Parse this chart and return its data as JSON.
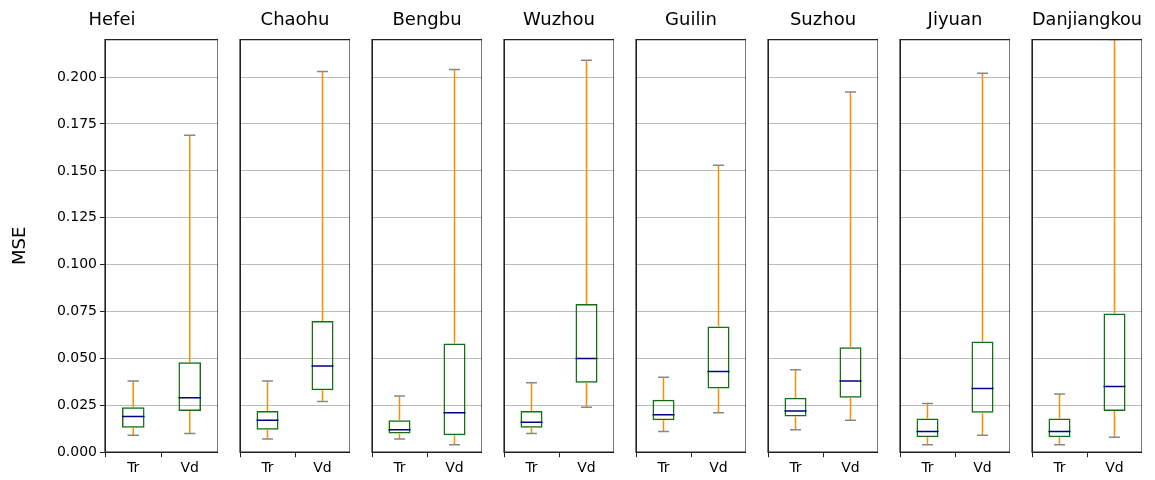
{
  "chart_data": [
    {
      "type": "box",
      "title": "Hefei",
      "ylabel": "MSE",
      "categories": [
        "Tr",
        "Vd"
      ],
      "grid": "y",
      "ylim": [
        0,
        0.22
      ],
      "yticks": [
        {
          "value": 0,
          "label": "0.000"
        },
        {
          "value": 0.025,
          "label": "0.025"
        },
        {
          "value": 0.05,
          "label": "0.050"
        },
        {
          "value": 0.075,
          "label": "0.075"
        },
        {
          "value": 0.1,
          "label": "0.100"
        },
        {
          "value": 0.125,
          "label": "0.125"
        },
        {
          "value": 0.15,
          "label": "0.150"
        },
        {
          "value": 0.175,
          "label": "0.175"
        },
        {
          "value": 0.2,
          "label": "0.200"
        }
      ],
      "boxes": [
        {
          "low": 0.009,
          "q1": 0.013,
          "median": 0.019,
          "q3": 0.024,
          "high": 0.038
        },
        {
          "low": 0.01,
          "q1": 0.022,
          "median": 0.029,
          "q3": 0.048,
          "high": 0.169
        }
      ]
    },
    {
      "type": "box",
      "title": "Chaohu",
      "categories": [
        "Tr",
        "Vd"
      ],
      "grid": "y",
      "tick_labels": "x",
      "ylim": [
        0,
        0.22
      ],
      "boxes": [
        {
          "low": 0.007,
          "q1": 0.012,
          "median": 0.017,
          "q3": 0.022,
          "high": 0.038
        },
        {
          "low": 0.027,
          "q1": 0.033,
          "median": 0.046,
          "q3": 0.07,
          "high": 0.203
        }
      ]
    },
    {
      "type": "box",
      "title": "Bengbu",
      "categories": [
        "Tr",
        "Vd"
      ],
      "grid": "y",
      "tick_labels": "x",
      "ylim": [
        0,
        0.22
      ],
      "boxes": [
        {
          "low": 0.007,
          "q1": 0.01,
          "median": 0.012,
          "q3": 0.017,
          "high": 0.03
        },
        {
          "low": 0.004,
          "q1": 0.009,
          "median": 0.021,
          "q3": 0.058,
          "high": 0.204
        }
      ]
    },
    {
      "type": "box",
      "title": "Wuzhou",
      "categories": [
        "Tr",
        "Vd"
      ],
      "grid": "y",
      "tick_labels": "x",
      "ylim": [
        0,
        0.22
      ],
      "boxes": [
        {
          "low": 0.01,
          "q1": 0.013,
          "median": 0.016,
          "q3": 0.022,
          "high": 0.037
        },
        {
          "low": 0.024,
          "q1": 0.037,
          "median": 0.05,
          "q3": 0.079,
          "high": 0.209
        }
      ]
    },
    {
      "type": "box",
      "title": "Guilin",
      "categories": [
        "Tr",
        "Vd"
      ],
      "grid": "y",
      "tick_labels": "x",
      "ylim": [
        0,
        0.22
      ],
      "boxes": [
        {
          "low": 0.011,
          "q1": 0.017,
          "median": 0.02,
          "q3": 0.028,
          "high": 0.04
        },
        {
          "low": 0.021,
          "q1": 0.034,
          "median": 0.043,
          "q3": 0.067,
          "high": 0.153
        }
      ]
    },
    {
      "type": "box",
      "title": "Suzhou",
      "categories": [
        "Tr",
        "Vd"
      ],
      "grid": "y",
      "tick_labels": "x",
      "ylim": [
        0,
        0.22
      ],
      "boxes": [
        {
          "low": 0.012,
          "q1": 0.019,
          "median": 0.022,
          "q3": 0.029,
          "high": 0.044
        },
        {
          "low": 0.017,
          "q1": 0.029,
          "median": 0.038,
          "q3": 0.056,
          "high": 0.192
        }
      ]
    },
    {
      "type": "box",
      "title": "Jiyuan",
      "categories": [
        "Tr",
        "Vd"
      ],
      "grid": "y",
      "tick_labels": "x",
      "ylim": [
        0,
        0.22
      ],
      "boxes": [
        {
          "low": 0.004,
          "q1": 0.008,
          "median": 0.011,
          "q3": 0.018,
          "high": 0.026
        },
        {
          "low": 0.009,
          "q1": 0.021,
          "median": 0.034,
          "q3": 0.059,
          "high": 0.202
        }
      ]
    },
    {
      "type": "box",
      "title": "Danjiangkou",
      "categories": [
        "Tr",
        "Vd"
      ],
      "grid": "y",
      "tick_labels": "x",
      "ylim": [
        0,
        0.22
      ],
      "boxes": [
        {
          "low": 0.004,
          "q1": 0.008,
          "median": 0.011,
          "q3": 0.018,
          "high": 0.031
        },
        {
          "low": 0.008,
          "q1": 0.022,
          "median": 0.035,
          "q3": 0.074,
          "high": 0.22
        }
      ]
    }
  ]
}
